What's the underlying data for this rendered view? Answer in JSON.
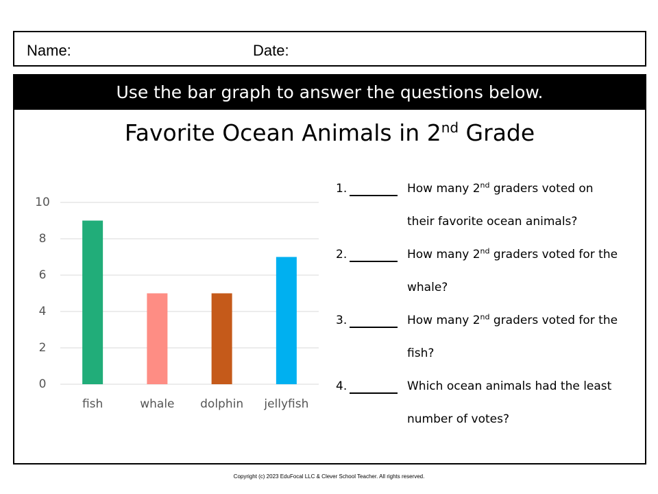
{
  "header": {
    "name_label": "Name:",
    "date_label": "Date:"
  },
  "banner": "Use the bar graph to answer the questions below.",
  "chart_data": {
    "type": "bar",
    "title": [
      "Favorite Ocean Animals in 2",
      "nd",
      " Grade"
    ],
    "categories": [
      "fish",
      "whale",
      "dolphin",
      "jellyfish"
    ],
    "values": [
      9,
      5,
      5,
      7
    ],
    "colors": [
      "#21ad79",
      "#fe8d84",
      "#c55a1a",
      "#00b0f0"
    ],
    "ylim": [
      0,
      10
    ],
    "yticks": [
      0,
      2,
      4,
      6,
      8,
      10
    ],
    "grid": true
  },
  "questions": [
    {
      "number": "1.",
      "text": [
        "How many 2",
        "nd",
        " graders voted on their favorite ocean animals?"
      ]
    },
    {
      "number": "2.",
      "text": [
        "How many 2",
        "nd",
        " graders voted for the whale?"
      ]
    },
    {
      "number": "3.",
      "text": [
        "How many 2",
        "nd",
        " graders voted for the fish?"
      ]
    },
    {
      "number": "4.",
      "text": [
        "Which ocean animals had the least number of votes?"
      ]
    }
  ],
  "footer": "Copyright (c) 2023 EduFocal LLC & Clever School Teacher. All rights reserved."
}
